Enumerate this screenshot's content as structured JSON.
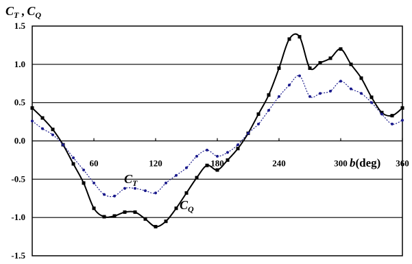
{
  "chart_data": {
    "type": "line",
    "title": "",
    "ylabel": {
      "main1": "C",
      "sub1": "T",
      "sep": " ,",
      "main2": "C",
      "sub2": "Q"
    },
    "xlabel": {
      "symbol": "b",
      "text": "(deg)"
    },
    "xlim": [
      0,
      360
    ],
    "ylim": [
      -1.5,
      1.5
    ],
    "xticks": [
      60,
      120,
      180,
      240,
      300,
      360
    ],
    "yticks": [
      "1.5",
      "1.0",
      "0.5",
      "0.0",
      "-0.5",
      "-1.0",
      "-1.5"
    ],
    "grid": "horizontal",
    "series": [
      {
        "name": "C_Q",
        "label_main": "C",
        "label_sub": "Q",
        "color": "#000000",
        "marker": "square",
        "x": [
          0,
          10,
          20,
          30,
          40,
          50,
          60,
          70,
          80,
          90,
          100,
          110,
          120,
          130,
          140,
          150,
          160,
          170,
          180,
          190,
          200,
          210,
          220,
          230,
          240,
          250,
          260,
          270,
          280,
          290,
          300,
          310,
          320,
          330,
          340,
          350,
          360
        ],
        "y": [
          0.43,
          0.3,
          0.15,
          -0.05,
          -0.3,
          -0.55,
          -0.88,
          -0.99,
          -0.98,
          -0.93,
          -0.93,
          -1.02,
          -1.12,
          -1.05,
          -0.88,
          -0.68,
          -0.48,
          -0.32,
          -0.38,
          -0.25,
          -0.1,
          0.1,
          0.35,
          0.6,
          0.95,
          1.33,
          1.36,
          0.95,
          1.02,
          1.08,
          1.2,
          1.0,
          0.82,
          0.57,
          0.37,
          0.33,
          0.43
        ]
      },
      {
        "name": "C_T",
        "label_main": "C",
        "label_sub": "T",
        "color": "#1a1a8c",
        "marker": "circle",
        "x": [
          0,
          10,
          20,
          30,
          40,
          50,
          60,
          70,
          80,
          90,
          100,
          110,
          120,
          130,
          140,
          150,
          160,
          170,
          180,
          190,
          200,
          210,
          220,
          230,
          240,
          250,
          260,
          270,
          280,
          290,
          300,
          310,
          320,
          330,
          340,
          350,
          360
        ],
        "y": [
          0.26,
          0.16,
          0.08,
          -0.05,
          -0.22,
          -0.38,
          -0.55,
          -0.7,
          -0.72,
          -0.62,
          -0.62,
          -0.65,
          -0.68,
          -0.55,
          -0.45,
          -0.35,
          -0.2,
          -0.12,
          -0.2,
          -0.15,
          -0.05,
          0.1,
          0.22,
          0.4,
          0.58,
          0.73,
          0.85,
          0.58,
          0.62,
          0.65,
          0.78,
          0.68,
          0.62,
          0.5,
          0.35,
          0.22,
          0.27
        ]
      }
    ]
  }
}
